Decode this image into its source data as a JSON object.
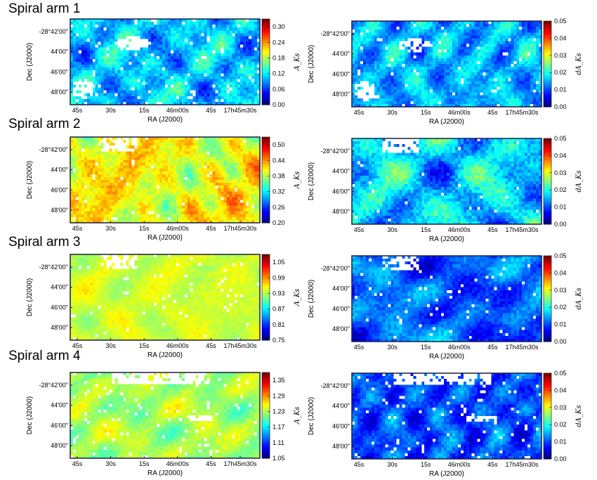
{
  "rows": [
    {
      "title": "Spiral arm 1"
    },
    {
      "title": "Spiral arm 2"
    },
    {
      "title": "Spiral arm 3"
    },
    {
      "title": "Spiral arm 4"
    }
  ],
  "colors": {
    "colormap": "jet",
    "frame": "#1a1a4a",
    "blank": "#ffffff"
  },
  "chart_data": [
    {
      "type": "heatmap",
      "row": 1,
      "column": "left",
      "xlabel": "RA (J2000)",
      "ylabel": "Dec (J2000)",
      "x_ticks": [
        "45s",
        "30s",
        "15s",
        "46m00s",
        "45s",
        "17h45m30s"
      ],
      "y_ticks": [
        "-28°42'00\"",
        "44'00\"",
        "46'00\"",
        "48'00\""
      ],
      "colorbar": {
        "label": "A_Ks",
        "ticks": [
          "0.00",
          "0.06",
          "0.12",
          "0.18",
          "0.24",
          "0.30"
        ],
        "range": [
          0.0,
          0.33
        ]
      },
      "mean_level": 0.32,
      "spread": 0.24,
      "blank_fraction": 0.09,
      "mask": "patchy",
      "seed": 11
    },
    {
      "type": "heatmap",
      "row": 1,
      "column": "right",
      "xlabel": "RA (J2000)",
      "ylabel": "Dec (J2000)",
      "x_ticks": [
        "45s",
        "30s",
        "15s",
        "46m00s",
        "45s",
        "17h45m30s"
      ],
      "y_ticks": [
        "-28°42'00\"",
        "44'00\"",
        "46'00\"",
        "48'00\""
      ],
      "colorbar": {
        "label": "dA_Ks",
        "ticks": [
          "0.00",
          "0.01",
          "0.02",
          "0.03",
          "0.04",
          "0.05"
        ],
        "range": [
          0.0,
          0.05
        ]
      },
      "mean_level": 0.3,
      "spread": 0.22,
      "blank_fraction": 0.07,
      "mask": "patchy",
      "seed": 12
    },
    {
      "type": "heatmap",
      "row": 2,
      "column": "left",
      "xlabel": "RA (J2000)",
      "ylabel": "Dec (J2000)",
      "x_ticks": [
        "45s",
        "30s",
        "15s",
        "46m00s",
        "45s",
        "17h45m30s"
      ],
      "y_ticks": [
        "-28°42'00\"",
        "44'00\"",
        "46'00\"",
        "48'00\""
      ],
      "colorbar": {
        "label": "A_Ks",
        "ticks": [
          "0.20",
          "0.26",
          "0.32",
          "0.38",
          "0.44",
          "0.50"
        ],
        "range": [
          0.2,
          0.53
        ]
      },
      "mean_level": 0.62,
      "spread": 0.22,
      "blank_fraction": 0.03,
      "mask": "top",
      "seed": 21
    },
    {
      "type": "heatmap",
      "row": 2,
      "column": "right",
      "xlabel": "RA (J2000)",
      "ylabel": "Dec (J2000)",
      "x_ticks": [
        "45s",
        "30s",
        "15s",
        "46m00s",
        "45s",
        "17h45m30s"
      ],
      "y_ticks": [
        "-28°42'00\"",
        "44'00\"",
        "46'00\"",
        "48'00\""
      ],
      "colorbar": {
        "label": "dA_Ks",
        "ticks": [
          "0.00",
          "0.01",
          "0.02",
          "0.03",
          "0.04",
          "0.05"
        ],
        "range": [
          0.0,
          0.05
        ]
      },
      "mean_level": 0.33,
      "spread": 0.28,
      "blank_fraction": 0.03,
      "mask": "top",
      "seed": 22
    },
    {
      "type": "heatmap",
      "row": 3,
      "column": "left",
      "xlabel": "RA (J2000)",
      "ylabel": "Dec (J2000)",
      "x_ticks": [
        "45s",
        "30s",
        "15s",
        "46m00s",
        "45s",
        "17h45m30s"
      ],
      "y_ticks": [
        "-28°42'00\"",
        "44'00\"",
        "46'00\"",
        "48'00\""
      ],
      "colorbar": {
        "label": "A_Ks",
        "ticks": [
          "0.75",
          "0.81",
          "0.87",
          "0.93",
          "0.99",
          "1.05"
        ],
        "range": [
          0.75,
          1.08
        ]
      },
      "mean_level": 0.58,
      "spread": 0.12,
      "blank_fraction": 0.05,
      "mask": "top",
      "seed": 31
    },
    {
      "type": "heatmap",
      "row": 3,
      "column": "right",
      "xlabel": "RA (J2000)",
      "ylabel": "Dec (J2000)",
      "x_ticks": [
        "45s",
        "30s",
        "15s",
        "46m00s",
        "45s",
        "17h45m30s"
      ],
      "y_ticks": [
        "-28°42'00\"",
        "44'00\"",
        "46'00\"",
        "48'00\""
      ],
      "colorbar": {
        "label": "dA_Ks",
        "ticks": [
          "0.00",
          "0.01",
          "0.02",
          "0.03",
          "0.04",
          "0.05"
        ],
        "range": [
          0.0,
          0.05
        ]
      },
      "mean_level": 0.22,
      "spread": 0.2,
      "blank_fraction": 0.05,
      "mask": "top",
      "seed": 32
    },
    {
      "type": "heatmap",
      "row": 4,
      "column": "left",
      "xlabel": "RA (J2000)",
      "ylabel": "Dec (J2000)",
      "x_ticks": [
        "45s",
        "30s",
        "15s",
        "46m00s",
        "45s",
        "17h45m30s"
      ],
      "y_ticks": [
        "-28°42'00\"",
        "44'00\"",
        "46'00\"",
        "48'00\""
      ],
      "colorbar": {
        "label": "A_Ks",
        "ticks": [
          "1.05",
          "1.11",
          "1.17",
          "1.23",
          "1.29",
          "1.35"
        ],
        "range": [
          1.05,
          1.38
        ]
      },
      "mean_level": 0.54,
      "spread": 0.14,
      "blank_fraction": 0.08,
      "mask": "top-band",
      "seed": 41
    },
    {
      "type": "heatmap",
      "row": 4,
      "column": "right",
      "xlabel": "RA (J2000)",
      "ylabel": "Dec (J2000)",
      "x_ticks": [
        "45s",
        "30s",
        "15s",
        "46m00s",
        "45s",
        "17h45m30s"
      ],
      "y_ticks": [
        "-28°42'00\"",
        "44'00\"",
        "46'00\"",
        "48'00\""
      ],
      "colorbar": {
        "label": "dA_Ks",
        "ticks": [
          "0.00",
          "0.01",
          "0.02",
          "0.03",
          "0.04",
          "0.05"
        ],
        "range": [
          0.0,
          0.05
        ]
      },
      "mean_level": 0.2,
      "spread": 0.2,
      "blank_fraction": 0.08,
      "mask": "top-band",
      "seed": 42
    }
  ]
}
